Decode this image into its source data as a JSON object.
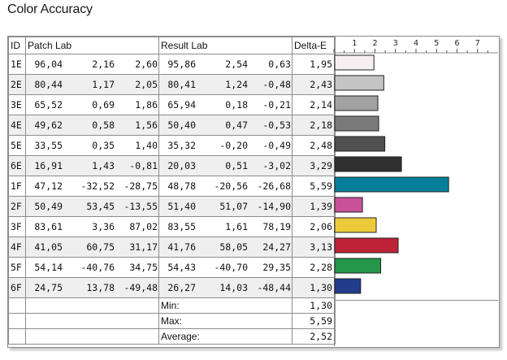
{
  "title": "Color Accuracy",
  "headers": {
    "id": "ID",
    "patch": "Patch Lab",
    "result": "Result Lab",
    "delta": "Delta-E"
  },
  "rows": [
    {
      "id": "1E",
      "patch": [
        "96,04",
        "2,16",
        "2,60"
      ],
      "result": [
        "95,86",
        "2,54",
        "0,63"
      ],
      "de": "1,95"
    },
    {
      "id": "2E",
      "patch": [
        "80,44",
        "1,17",
        "2,05"
      ],
      "result": [
        "80,41",
        "1,24",
        "-0,48"
      ],
      "de": "2,43"
    },
    {
      "id": "3E",
      "patch": [
        "65,52",
        "0,69",
        "1,86"
      ],
      "result": [
        "65,94",
        "0,18",
        "-0,21"
      ],
      "de": "2,14"
    },
    {
      "id": "4E",
      "patch": [
        "49,62",
        "0,58",
        "1,56"
      ],
      "result": [
        "50,40",
        "0,47",
        "-0,53"
      ],
      "de": "2,18"
    },
    {
      "id": "5E",
      "patch": [
        "33,55",
        "0,35",
        "1,40"
      ],
      "result": [
        "35,32",
        "-0,20",
        "-0,49"
      ],
      "de": "2,48"
    },
    {
      "id": "6E",
      "patch": [
        "16,91",
        "1,43",
        "-0,81"
      ],
      "result": [
        "20,03",
        "0,51",
        "-3,02"
      ],
      "de": "3,29"
    },
    {
      "id": "1F",
      "patch": [
        "47,12",
        "-32,52",
        "-28,75"
      ],
      "result": [
        "48,78",
        "-20,56",
        "-26,68"
      ],
      "de": "5,59"
    },
    {
      "id": "2F",
      "patch": [
        "50,49",
        "53,45",
        "-13,55"
      ],
      "result": [
        "51,40",
        "51,07",
        "-14,90"
      ],
      "de": "1,39"
    },
    {
      "id": "3F",
      "patch": [
        "83,61",
        "3,36",
        "87,02"
      ],
      "result": [
        "83,55",
        "1,61",
        "78,19"
      ],
      "de": "2,06"
    },
    {
      "id": "4F",
      "patch": [
        "41,05",
        "60,75",
        "31,17"
      ],
      "result": [
        "41,76",
        "58,05",
        "24,27"
      ],
      "de": "3,13"
    },
    {
      "id": "5F",
      "patch": [
        "54,14",
        "-40,76",
        "34,75"
      ],
      "result": [
        "54,43",
        "-40,70",
        "29,35"
      ],
      "de": "2,28"
    },
    {
      "id": "6F",
      "patch": [
        "24,75",
        "13,78",
        "-49,48"
      ],
      "result": [
        "26,27",
        "14,03",
        "-48,44"
      ],
      "de": "1,30"
    }
  ],
  "summary": [
    {
      "label": "Min:",
      "value": "1,30"
    },
    {
      "label": "Max:",
      "value": "5,59"
    },
    {
      "label": "Average:",
      "value": "2,52"
    }
  ],
  "chart_data": {
    "type": "bar",
    "orientation": "horizontal",
    "title": "Color Accuracy",
    "categories": [
      "1E",
      "2E",
      "3E",
      "4E",
      "5E",
      "6E",
      "1F",
      "2F",
      "3F",
      "4F",
      "5F",
      "6F"
    ],
    "values": [
      1.95,
      2.43,
      2.14,
      2.18,
      2.48,
      3.29,
      5.59,
      1.39,
      2.06,
      3.13,
      2.28,
      1.3
    ],
    "colors": [
      "#f5eff1",
      "#c4c4c4",
      "#a2a2a2",
      "#7a7a7a",
      "#505050",
      "#303030",
      "#067f9b",
      "#c8519a",
      "#ecca3a",
      "#bd2238",
      "#25964a",
      "#233c8c"
    ],
    "x_ticks": [
      "1",
      "2",
      "3",
      "4",
      "5",
      "6",
      "7"
    ],
    "xlim": [
      0,
      8
    ],
    "grid": false
  }
}
